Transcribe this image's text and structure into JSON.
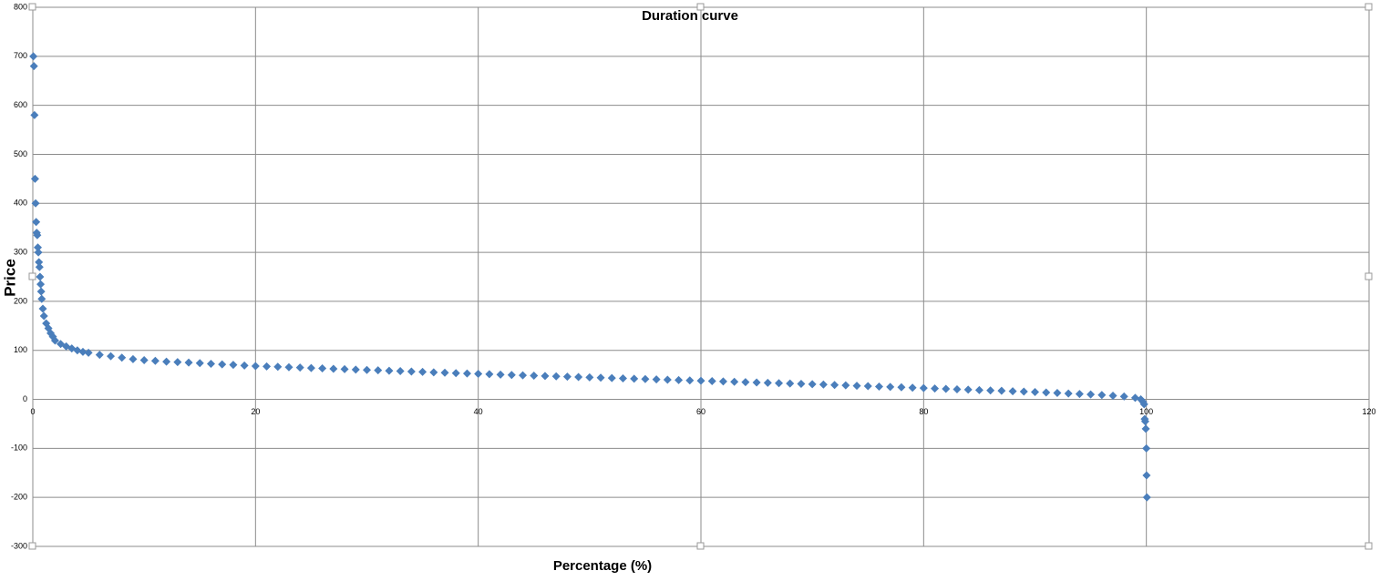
{
  "chart_data": {
    "type": "scatter",
    "title": "Duration curve",
    "x_label": "Percentage (%)",
    "y_label": "Price",
    "series": [
      {
        "color": "#4a7ebb",
        "x": [
          0.05,
          0.1,
          0.15,
          0.2,
          0.25,
          0.3,
          0.35,
          0.4,
          0.45,
          0.5,
          0.55,
          0.6,
          0.65,
          0.7,
          0.75,
          0.8,
          0.9,
          1,
          1.2,
          1.4,
          1.6,
          1.8,
          2,
          2.5,
          3,
          3.5,
          4,
          4.5,
          5,
          6,
          7,
          8,
          9,
          10,
          11,
          12,
          13,
          14,
          15,
          16,
          17,
          18,
          19,
          20,
          21,
          22,
          23,
          24,
          25,
          26,
          27,
          28,
          29,
          30,
          31,
          32,
          33,
          34,
          35,
          36,
          37,
          38,
          39,
          40,
          41,
          42,
          43,
          44,
          45,
          46,
          47,
          48,
          49,
          50,
          51,
          52,
          53,
          54,
          55,
          56,
          57,
          58,
          59,
          60,
          61,
          62,
          63,
          64,
          65,
          66,
          67,
          68,
          69,
          70,
          71,
          72,
          73,
          74,
          75,
          76,
          77,
          78,
          79,
          80,
          81,
          82,
          83,
          84,
          85,
          86,
          87,
          88,
          89,
          90,
          91,
          92,
          93,
          94,
          95,
          96,
          97,
          98,
          99,
          99.5,
          99.7,
          99.8,
          99.85,
          99.9,
          99.95,
          100,
          100.02,
          100.05
        ],
        "y": [
          700,
          680,
          580,
          450,
          400,
          362,
          340,
          335,
          310,
          300,
          280,
          270,
          250,
          235,
          220,
          205,
          185,
          170,
          155,
          145,
          135,
          128,
          120,
          113,
          108,
          104,
          100,
          97,
          95,
          91,
          88,
          85,
          82,
          80,
          78.5,
          77,
          76,
          75,
          74,
          72.5,
          71.5,
          70.5,
          69,
          68,
          67.2,
          66.4,
          65.6,
          64.8,
          64,
          63.2,
          62.4,
          61.6,
          60.8,
          60,
          59.2,
          58.4,
          57.6,
          56.8,
          56,
          55.2,
          54.4,
          53.6,
          52.8,
          52,
          51.3,
          50.6,
          49.9,
          49.2,
          48.5,
          47.8,
          47.1,
          46.4,
          45.7,
          45,
          44.3,
          43.6,
          42.9,
          42.2,
          41.5,
          40.8,
          40.1,
          39.4,
          38.7,
          38,
          37.3,
          36.6,
          35.9,
          35.2,
          34.5,
          33.8,
          33.1,
          32.4,
          31.7,
          31,
          30.2,
          29.4,
          28.6,
          27.8,
          27,
          26.2,
          25.4,
          24.6,
          23.8,
          23,
          22.2,
          21.4,
          20.6,
          19.8,
          19,
          18.2,
          17.4,
          16.6,
          15.8,
          15,
          14,
          13,
          12,
          11,
          10,
          9,
          7.5,
          6,
          3,
          0,
          -5,
          -10,
          -40,
          -45,
          -60,
          -100,
          -155,
          -200
        ]
      }
    ],
    "xlim": [
      0,
      120
    ],
    "xticks": [
      0,
      20,
      40,
      60,
      80,
      100,
      120
    ],
    "ylim": [
      -300,
      800
    ],
    "yticks": [
      -300,
      -200,
      -100,
      0,
      100,
      200,
      300,
      400,
      500,
      600,
      700,
      800
    ],
    "grid": true
  }
}
